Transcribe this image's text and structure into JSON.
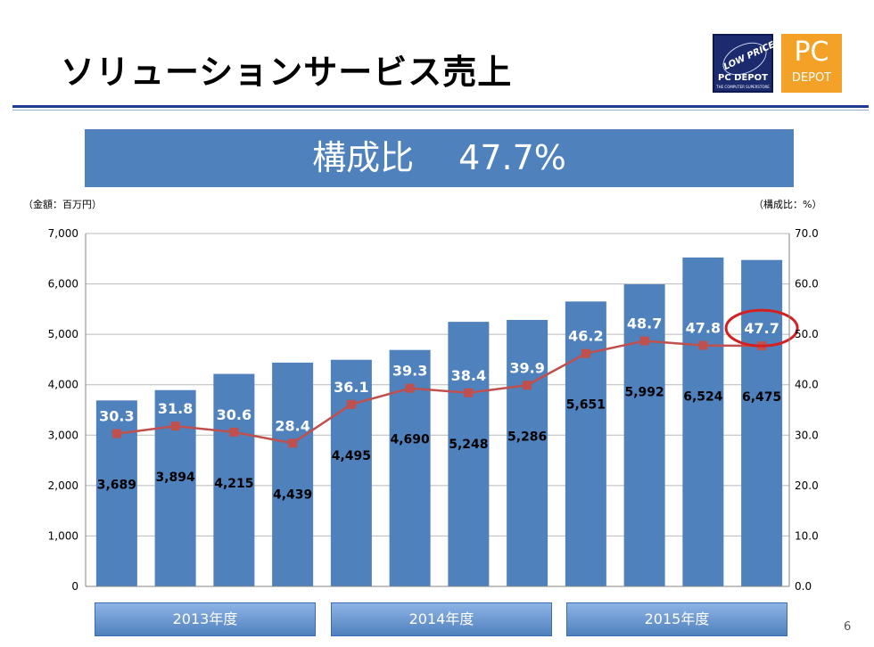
{
  "slide": {
    "title": "ソリューションサービス売上",
    "banner": "構成比　 47.7%",
    "unit_left": "（金額：百万円）",
    "unit_right": "（構成比：%）",
    "page_number": "6"
  },
  "logos": {
    "left_main": "LOW PRICE",
    "left_brand": "PC DEPOT",
    "left_sub": "THE COMPUTER SUPERSTORE",
    "right_big": "PC",
    "right_small": "DEPOT"
  },
  "year_groups": [
    "2013年度",
    "2014年度",
    "2015年度"
  ],
  "colors": {
    "bar": "#4f81bd",
    "line": "#c0504d",
    "highlight_circle": "#d42020",
    "banner": "#4f81bd"
  },
  "chart_data": {
    "type": "bar",
    "y_left": {
      "min": 0,
      "max": 7000,
      "ticks": [
        "0",
        "1,000",
        "2,000",
        "3,000",
        "4,000",
        "5,000",
        "6,000",
        "7,000"
      ]
    },
    "y_right": {
      "min": 0,
      "max": 70,
      "ticks": [
        "0.0",
        "10.0",
        "20.0",
        "30.0",
        "40.0",
        "50.0",
        "60.0",
        "70.0"
      ]
    },
    "grid": true,
    "series": [
      {
        "type": "bar",
        "axis": "left",
        "values": [
          3689,
          3894,
          4215,
          4439,
          4495,
          4690,
          5248,
          5286,
          5651,
          5992,
          6524,
          6475
        ],
        "labels": [
          "3,689",
          "3,894",
          "4,215",
          "4,439",
          "4,495",
          "4,690",
          "5,248",
          "5,286",
          "5,651",
          "5,992",
          "6,524",
          "6,475"
        ]
      },
      {
        "type": "line",
        "axis": "right",
        "values": [
          30.3,
          31.8,
          30.6,
          28.4,
          36.1,
          39.3,
          38.4,
          39.9,
          46.2,
          48.7,
          47.8,
          47.7
        ],
        "labels": [
          "30.3",
          "31.8",
          "30.6",
          "28.4",
          "36.1",
          "39.3",
          "38.4",
          "39.9",
          "46.2",
          "48.7",
          "47.8",
          "47.7"
        ]
      }
    ],
    "highlighted_point": 11
  }
}
